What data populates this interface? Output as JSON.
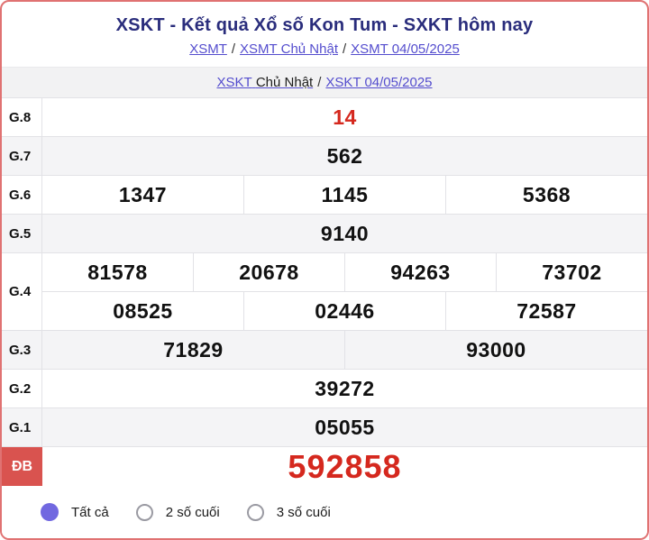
{
  "header": {
    "title": "XSKT - Kết quả Xổ số Kon Tum - SXKT hôm nay",
    "separator": "/",
    "breadcrumb1": [
      {
        "label": "XSMT"
      },
      {
        "label": "XSMT Chủ Nhật"
      },
      {
        "label": "XSMT 04/05/2025"
      }
    ],
    "breadcrumb2": {
      "link1": "XSKT",
      "static": "Chủ Nhật",
      "link2": "XSKT 04/05/2025"
    }
  },
  "results": {
    "rows": [
      {
        "label": "G.8",
        "values": [
          "14"
        ],
        "highlight": true
      },
      {
        "label": "G.7",
        "values": [
          "562"
        ]
      },
      {
        "label": "G.6",
        "values": [
          "1347",
          "1145",
          "5368"
        ]
      },
      {
        "label": "G.5",
        "values": [
          "9140"
        ]
      },
      {
        "label": "G.4",
        "lines": [
          [
            "81578",
            "20678",
            "94263",
            "73702"
          ],
          [
            "08525",
            "02446",
            "72587"
          ]
        ]
      },
      {
        "label": "G.3",
        "values": [
          "71829",
          "93000"
        ]
      },
      {
        "label": "G.2",
        "values": [
          "39272"
        ]
      },
      {
        "label": "G.1",
        "values": [
          "05055"
        ]
      },
      {
        "label": "ĐB",
        "values": [
          "592858"
        ],
        "special": true
      }
    ]
  },
  "filters": {
    "options": [
      {
        "label": "Tất cả",
        "selected": true
      },
      {
        "label": "2 số cuối",
        "selected": false
      },
      {
        "label": "3 số cuối",
        "selected": false
      }
    ]
  },
  "colors": {
    "accent_red": "#d5281e",
    "special_label_bg": "#d9534f",
    "title_navy": "#2a2d7c",
    "link_indigo": "#544dce",
    "radio_selected": "#7168e0",
    "card_border": "#e07272",
    "row_alt_bg": "#f4f4f6"
  }
}
